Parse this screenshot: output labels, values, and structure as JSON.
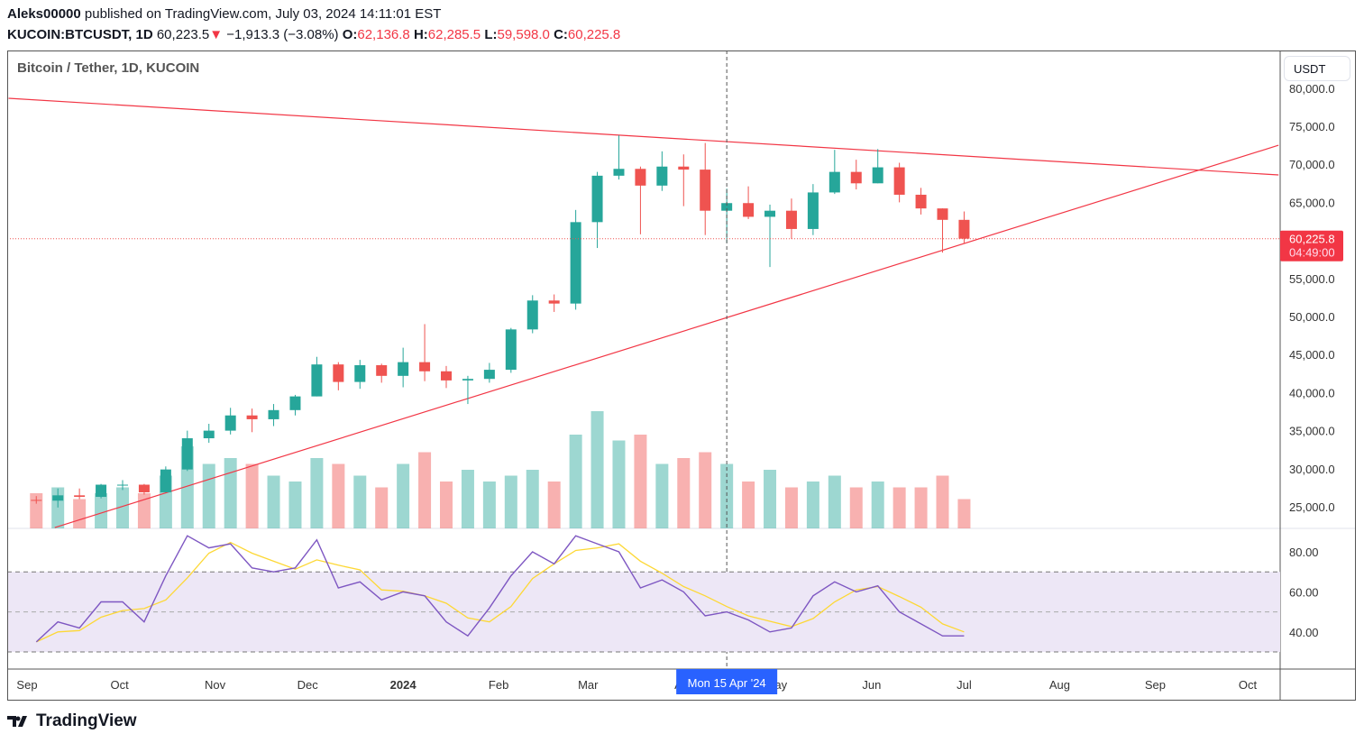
{
  "header": {
    "author": "Aleks00000",
    "published": "published on TradingView.com, July 03, 2024 14:11:01 EST",
    "symbol": "KUCOIN:BTCUSDT, 1D",
    "last": "60,223.5",
    "change": "−1,913.3 (−3.08%)",
    "o_label": "O:",
    "o": "62,136.8",
    "h_label": "H:",
    "h": "62,285.5",
    "l_label": "L:",
    "l": "59,598.0",
    "c_label": "C:",
    "c": "60,225.8"
  },
  "legend_title": "Bitcoin / Tether, 1D, KUCOIN",
  "currency": "USDT",
  "price_badge": {
    "price": "60,225.8",
    "countdown": "04:49:00"
  },
  "crosshair_label": "Mon 15 Apr '24",
  "brand": "TradingView",
  "colors": {
    "up": "#26a69a",
    "down": "#ef5350",
    "trendline": "#f23645",
    "rsi": "#7e57c2",
    "rsi_ma": "#fdd835",
    "rsi_band": "#ede7f6"
  },
  "chart_data": {
    "type": "candlestick",
    "interval_shown": "weekly approximation of 1D candles",
    "price_axis": {
      "ticks": [
        "80,000.0",
        "75,000.0",
        "70,000.0",
        "65,000.0",
        "55,000.0",
        "50,000.0",
        "45,000.0",
        "40,000.0",
        "35,000.0",
        "30,000.0",
        "25,000.0"
      ],
      "ylim": [
        21000,
        80700
      ]
    },
    "time_axis": {
      "ticks": [
        {
          "label": "Sep",
          "date": "2023-09-01"
        },
        {
          "label": "Oct",
          "date": "2023-10-01"
        },
        {
          "label": "Nov",
          "date": "2023-11-01"
        },
        {
          "label": "Dec",
          "date": "2023-12-01"
        },
        {
          "label": "2024",
          "date": "2024-01-01"
        },
        {
          "label": "Feb",
          "date": "2024-02-01"
        },
        {
          "label": "Mar",
          "date": "2024-03-01"
        },
        {
          "label": "Apr",
          "date": "2024-04-01"
        },
        {
          "label": "May",
          "date": "2024-05-01"
        },
        {
          "label": "Jun",
          "date": "2024-06-01"
        },
        {
          "label": "Jul",
          "date": "2024-07-01"
        },
        {
          "label": "Aug",
          "date": "2024-08-01"
        },
        {
          "label": "Sep",
          "date": "2024-09-01"
        },
        {
          "label": "Oct",
          "date": "2024-10-01"
        }
      ]
    },
    "columns": [
      "date",
      "open",
      "high",
      "low",
      "close",
      "volume_relative",
      "rsi"
    ],
    "candles": [
      [
        "2023-09-04",
        25900,
        26400,
        25400,
        25800,
        30,
        35
      ],
      [
        "2023-09-11",
        25800,
        27400,
        24900,
        26500,
        35,
        45
      ],
      [
        "2023-09-18",
        26500,
        27400,
        26000,
        26300,
        25,
        42
      ],
      [
        "2023-09-25",
        26300,
        28000,
        26100,
        27900,
        30,
        55
      ],
      [
        "2023-10-02",
        27900,
        28500,
        27200,
        27900,
        35,
        55
      ],
      [
        "2023-10-09",
        27900,
        28000,
        26600,
        26900,
        30,
        45
      ],
      [
        "2023-10-16",
        26900,
        30300,
        26900,
        29900,
        45,
        68
      ],
      [
        "2023-10-23",
        29900,
        35000,
        29700,
        34000,
        70,
        88
      ],
      [
        "2023-10-30",
        34000,
        35900,
        33400,
        35000,
        55,
        82
      ],
      [
        "2023-11-06",
        35000,
        38000,
        34500,
        37000,
        60,
        84
      ],
      [
        "2023-11-13",
        37000,
        37900,
        34800,
        36500,
        55,
        72
      ],
      [
        "2023-11-20",
        36500,
        38500,
        35600,
        37700,
        45,
        70
      ],
      [
        "2023-11-27",
        37700,
        39700,
        37000,
        39500,
        40,
        72
      ],
      [
        "2023-12-04",
        39500,
        44700,
        39500,
        43700,
        60,
        86
      ],
      [
        "2023-12-11",
        43700,
        44000,
        40300,
        41400,
        55,
        62
      ],
      [
        "2023-12-18",
        41400,
        44300,
        40500,
        43600,
        45,
        65
      ],
      [
        "2023-12-25",
        43600,
        43800,
        41300,
        42200,
        35,
        56
      ],
      [
        "2024-01-01",
        42200,
        45900,
        40700,
        44000,
        55,
        60
      ],
      [
        "2024-01-08",
        44000,
        49000,
        41500,
        42800,
        65,
        58
      ],
      [
        "2024-01-15",
        42800,
        43500,
        40600,
        41600,
        40,
        45
      ],
      [
        "2024-01-22",
        41600,
        42200,
        38500,
        41800,
        50,
        38
      ],
      [
        "2024-01-29",
        41800,
        43900,
        41300,
        43000,
        40,
        52
      ],
      [
        "2024-02-05",
        43000,
        48500,
        42600,
        48300,
        45,
        68
      ],
      [
        "2024-02-12",
        48300,
        52800,
        47800,
        52100,
        50,
        80
      ],
      [
        "2024-02-19",
        52100,
        52900,
        50600,
        51700,
        40,
        74
      ],
      [
        "2024-02-26",
        51700,
        64000,
        50900,
        62400,
        80,
        88
      ],
      [
        "2024-03-04",
        62400,
        69000,
        59000,
        68500,
        100,
        84
      ],
      [
        "2024-03-11",
        68500,
        73800,
        68000,
        69400,
        75,
        80
      ],
      [
        "2024-03-18",
        69400,
        69700,
        60800,
        67200,
        80,
        62
      ],
      [
        "2024-03-25",
        67200,
        71700,
        66500,
        69700,
        55,
        66
      ],
      [
        "2024-04-01",
        69700,
        71300,
        64500,
        69300,
        60,
        60
      ],
      [
        "2024-04-08",
        69300,
        72800,
        60700,
        63900,
        65,
        48
      ],
      [
        "2024-04-15",
        63900,
        66800,
        59700,
        64900,
        55,
        50
      ],
      [
        "2024-04-22",
        64900,
        67100,
        62800,
        63100,
        40,
        46
      ],
      [
        "2024-04-29",
        63100,
        64700,
        56500,
        63900,
        50,
        40
      ],
      [
        "2024-05-06",
        63900,
        65500,
        60200,
        61500,
        35,
        42
      ],
      [
        "2024-05-13",
        61500,
        67400,
        60700,
        66300,
        40,
        58
      ],
      [
        "2024-05-20",
        66300,
        71900,
        66100,
        69000,
        45,
        65
      ],
      [
        "2024-05-27",
        69000,
        70600,
        66700,
        67500,
        35,
        60
      ],
      [
        "2024-06-03",
        67500,
        72000,
        67500,
        69600,
        40,
        63
      ],
      [
        "2024-06-10",
        69600,
        70200,
        65000,
        66000,
        35,
        50
      ],
      [
        "2024-06-17",
        66000,
        66900,
        63400,
        64200,
        35,
        44
      ],
      [
        "2024-06-24",
        64200,
        64200,
        58400,
        62700,
        45,
        38
      ],
      [
        "2024-07-01",
        62700,
        63800,
        59600,
        60226,
        25,
        38
      ]
    ],
    "last_price": 60225.8,
    "trendlines": [
      {
        "from": [
          "2023-08-26",
          78670
        ],
        "to": [
          "2024-10-11",
          68600
        ]
      },
      {
        "from": [
          "2023-09-10",
          22270
        ],
        "to": [
          "2024-10-11",
          72500
        ]
      }
    ],
    "crosshair_date": "2024-04-15",
    "rsi_axis": {
      "ticks": [
        "80.00",
        "60.00",
        "40.00"
      ],
      "ylim": [
        23,
        90
      ],
      "bands": [
        70,
        50,
        30
      ]
    }
  }
}
